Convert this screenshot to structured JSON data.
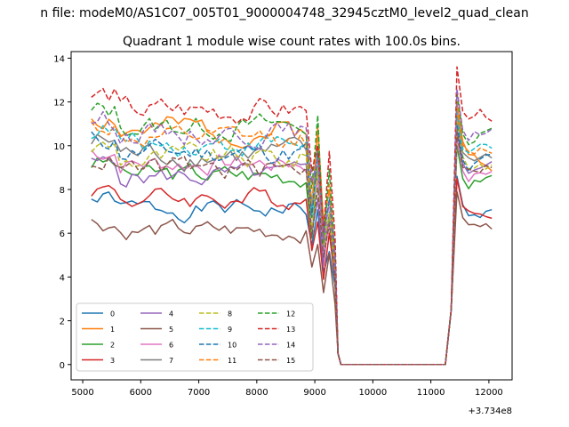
{
  "chart_data": {
    "type": "line",
    "suptitle": "n file: modeM0/AS1C07_005T01_9000004748_32945cztM0_level2_quad_clean",
    "title": "Quadrant 1 module wise count rates with 100.0s bins.",
    "xlabel": "",
    "ylabel": "",
    "x_offset_label": "+3.734e8",
    "xlim": [
      4800,
      12400
    ],
    "ylim": [
      -0.7,
      14.3
    ],
    "xticks": [
      5000,
      6000,
      7000,
      8000,
      9000,
      10000,
      11000,
      12000
    ],
    "yticks": [
      0,
      2,
      4,
      6,
      8,
      10,
      12,
      14
    ],
    "grid": false,
    "legend": {
      "placement": "lower-left",
      "columns": 4
    },
    "series": [
      {
        "name": "0",
        "color": "#1f77b4",
        "dash": "solid",
        "base": 7.1,
        "amp": 0.45,
        "peak": 8.6,
        "tail": 7.2,
        "seed": 1
      },
      {
        "name": "1",
        "color": "#ff7f0e",
        "dash": "solid",
        "base": 10.7,
        "amp": 0.6,
        "peak": 12.0,
        "tail": 9.2,
        "seed": 2
      },
      {
        "name": "2",
        "color": "#2ca02c",
        "dash": "solid",
        "base": 8.7,
        "amp": 0.5,
        "peak": 10.0,
        "tail": 8.8,
        "seed": 3
      },
      {
        "name": "3",
        "color": "#d62728",
        "dash": "solid",
        "base": 7.6,
        "amp": 0.5,
        "peak": 8.5,
        "tail": 7.3,
        "seed": 4
      },
      {
        "name": "4",
        "color": "#9467bd",
        "dash": "solid",
        "base": 8.6,
        "amp": 0.5,
        "peak": 10.8,
        "tail": 9.6,
        "seed": 5
      },
      {
        "name": "5",
        "color": "#8c564b",
        "dash": "solid",
        "base": 6.1,
        "amp": 0.45,
        "peak": 7.9,
        "tail": 6.2,
        "seed": 6
      },
      {
        "name": "6",
        "color": "#e377c2",
        "dash": "solid",
        "base": 9.2,
        "amp": 0.5,
        "peak": 10.4,
        "tail": 9.0,
        "seed": 7
      },
      {
        "name": "7",
        "color": "#7f7f7f",
        "dash": "solid",
        "base": 9.6,
        "amp": 0.6,
        "peak": 11.4,
        "tail": 9.8,
        "seed": 8
      },
      {
        "name": "8",
        "color": "#bcbd22",
        "dash": "dashed",
        "base": 9.4,
        "amp": 0.6,
        "peak": 11.2,
        "tail": 9.4,
        "seed": 9
      },
      {
        "name": "9",
        "color": "#17becf",
        "dash": "dashed",
        "base": 10.1,
        "amp": 0.55,
        "peak": 11.6,
        "tail": 10.2,
        "seed": 10
      },
      {
        "name": "10",
        "color": "#1f77b4",
        "dash": "dashed",
        "base": 9.7,
        "amp": 0.55,
        "peak": 11.0,
        "tail": 9.4,
        "seed": 11
      },
      {
        "name": "11",
        "color": "#ff7f0e",
        "dash": "dashed",
        "base": 10.3,
        "amp": 0.5,
        "peak": 11.8,
        "tail": 10.0,
        "seed": 12
      },
      {
        "name": "12",
        "color": "#2ca02c",
        "dash": "dashed",
        "base": 10.9,
        "amp": 0.55,
        "peak": 12.4,
        "tail": 10.8,
        "seed": 13
      },
      {
        "name": "13",
        "color": "#d62728",
        "dash": "dashed",
        "base": 11.6,
        "amp": 0.6,
        "peak": 13.6,
        "tail": 11.4,
        "seed": 14
      },
      {
        "name": "14",
        "color": "#9467bd",
        "dash": "dashed",
        "base": 10.6,
        "amp": 0.55,
        "peak": 12.6,
        "tail": 11.0,
        "seed": 15
      },
      {
        "name": "15",
        "color": "#8c564b",
        "dash": "dashed",
        "base": 8.9,
        "amp": 0.55,
        "peak": 10.6,
        "tail": 9.4,
        "seed": 16
      }
    ],
    "shape": {
      "x_start": 5150,
      "step": 100,
      "dip_x": [
        8950,
        9050,
        9150,
        9250,
        9350
      ],
      "dip_factor": [
        0.75,
        1.0,
        0.6,
        0.8,
        0.5
      ],
      "zero_from": 9400,
      "zero_to": 11250,
      "ramp_x": 11350,
      "end_x": 12100
    }
  }
}
